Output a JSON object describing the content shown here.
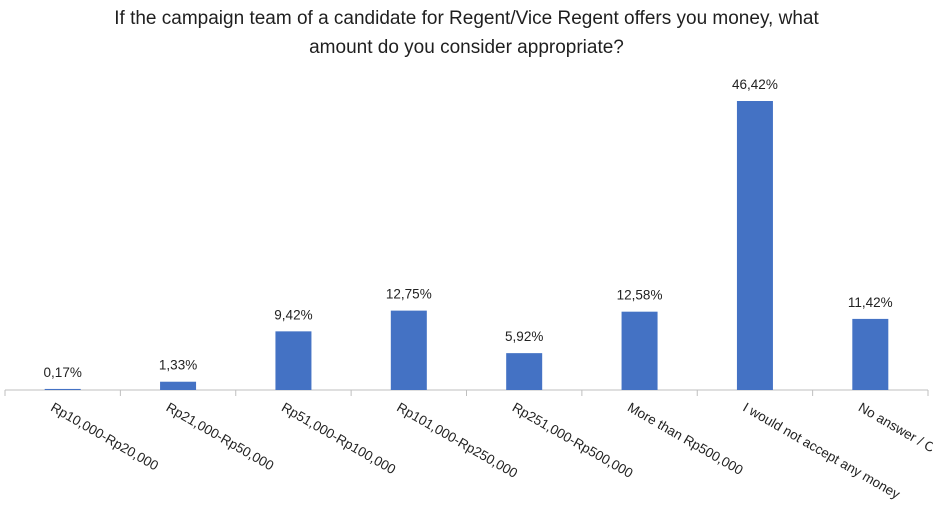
{
  "chart_data": {
    "type": "bar",
    "title_lines": [
      "If the campaign team of a candidate for Regent/Vice Regent offers you money, what",
      "amount do you consider appropriate?"
    ],
    "categories": [
      "Rp10,000-Rp20,000",
      "Rp21,000-Rp50,000",
      "Rp51,000-Rp100,000",
      "Rp101,000-Rp250,000",
      "Rp251,000-Rp500,000",
      "More than Rp500,000",
      "I would not accept any money",
      "No answer / Confidential"
    ],
    "values": [
      0.17,
      1.33,
      9.42,
      12.75,
      5.92,
      12.58,
      46.42,
      11.42
    ],
    "data_labels": [
      "0,17%",
      "1,33%",
      "9,42%",
      "12,75%",
      "5,92%",
      "12,58%",
      "46,42%",
      "11,42%"
    ],
    "bar_color": "#4472C4",
    "axis_color": "#BFBFBF",
    "ylim": [
      0,
      50
    ],
    "grid": false,
    "legend": "none"
  }
}
